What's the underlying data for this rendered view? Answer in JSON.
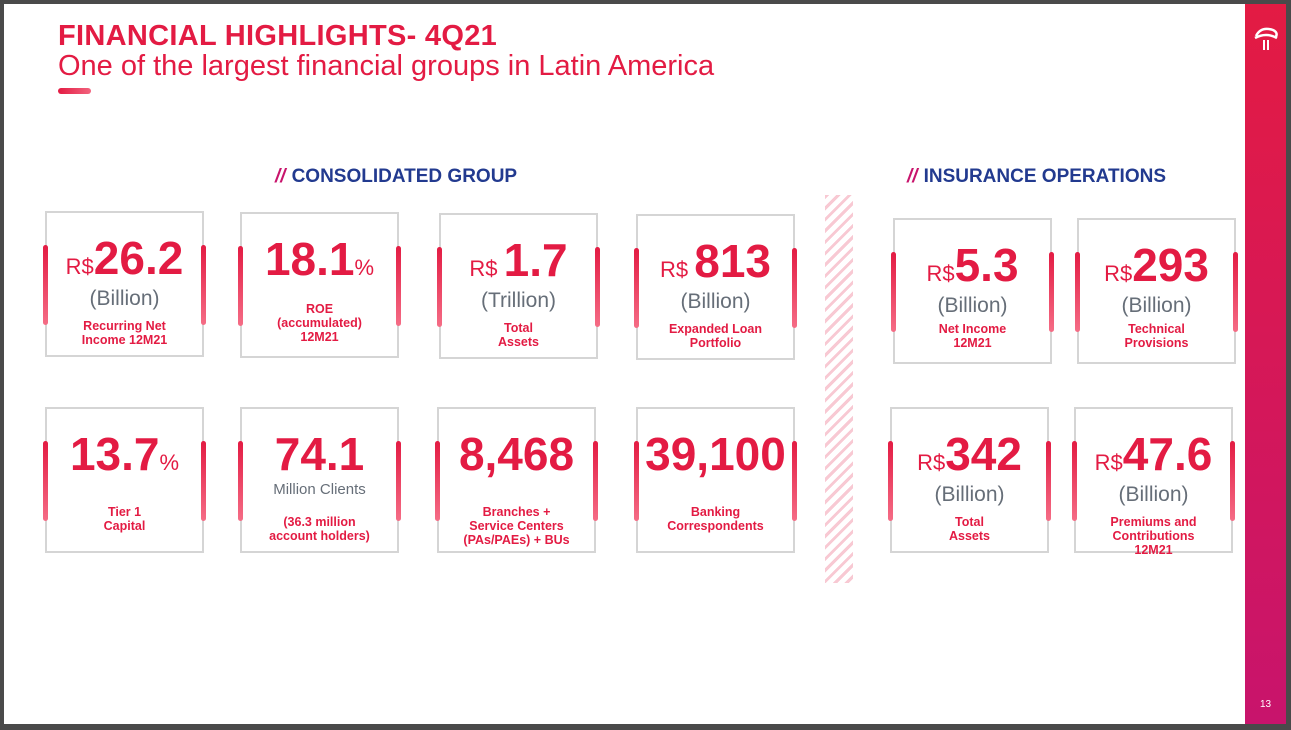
{
  "header": {
    "title": "FINANCIAL HIGHLIGHTS- 4Q21",
    "subtitle": "One of the largest financial groups in Latin America"
  },
  "sections": {
    "consolidated": "CONSOLIDATED GROUP",
    "insurance": "INSURANCE OPERATIONS",
    "slashes": "//"
  },
  "cards": [
    {
      "pre": "R$",
      "value": "26.2",
      "suf": "",
      "unit": "(Billion)",
      "label1": "Recurring Net",
      "label2": "Income 12M21",
      "label3": ""
    },
    {
      "pre": "",
      "value": "18.1",
      "suf": "%",
      "unit": "",
      "label1": "ROE",
      "label2": "(accumulated)",
      "label3": "12M21"
    },
    {
      "pre": "R$ ",
      "value": "1.7",
      "suf": "",
      "unit": "(Trillion)",
      "label1": "Total",
      "label2": "Assets",
      "label3": ""
    },
    {
      "pre": "R$ ",
      "value": "813",
      "suf": "",
      "unit": "(Billion)",
      "label1": "Expanded Loan",
      "label2": "Portfolio",
      "label3": ""
    },
    {
      "pre": "R$",
      "value": "5.3",
      "suf": "",
      "unit": "(Billion)",
      "label1": "Net Income",
      "label2": "12M21",
      "label3": ""
    },
    {
      "pre": "R$",
      "value": "293",
      "suf": "",
      "unit": "(Billion)",
      "label1": "Technical",
      "label2": "Provisions",
      "label3": ""
    },
    {
      "pre": "",
      "value": "13.7",
      "suf": "%",
      "unit": "",
      "label1": "Tier 1",
      "label2": "Capital",
      "label3": ""
    },
    {
      "pre": "",
      "value": "74.1",
      "suf": "",
      "unit": "Million Clients",
      "label1": "(36.3 million",
      "label2": "account holders)",
      "label3": ""
    },
    {
      "pre": "",
      "value": "8,468",
      "suf": "",
      "unit": "",
      "label1": "Branches +",
      "label2": "Service Centers",
      "label3": "(PAs/PAEs) + BUs"
    },
    {
      "pre": "",
      "value": "39,100",
      "suf": "",
      "unit": "",
      "label1": "Banking",
      "label2": "Correspondents",
      "label3": ""
    },
    {
      "pre": "R$",
      "value": "342",
      "suf": "",
      "unit": "(Billion)",
      "label1": "Total",
      "label2": "Assets",
      "label3": ""
    },
    {
      "pre": "R$",
      "value": "47.6",
      "suf": "",
      "unit": "(Billion)",
      "label1": "Premiums and",
      "label2": "Contributions",
      "label3": "12M21"
    }
  ],
  "page_number": "13",
  "colors": {
    "brand": "#e31b43",
    "navy": "#223a8f"
  }
}
